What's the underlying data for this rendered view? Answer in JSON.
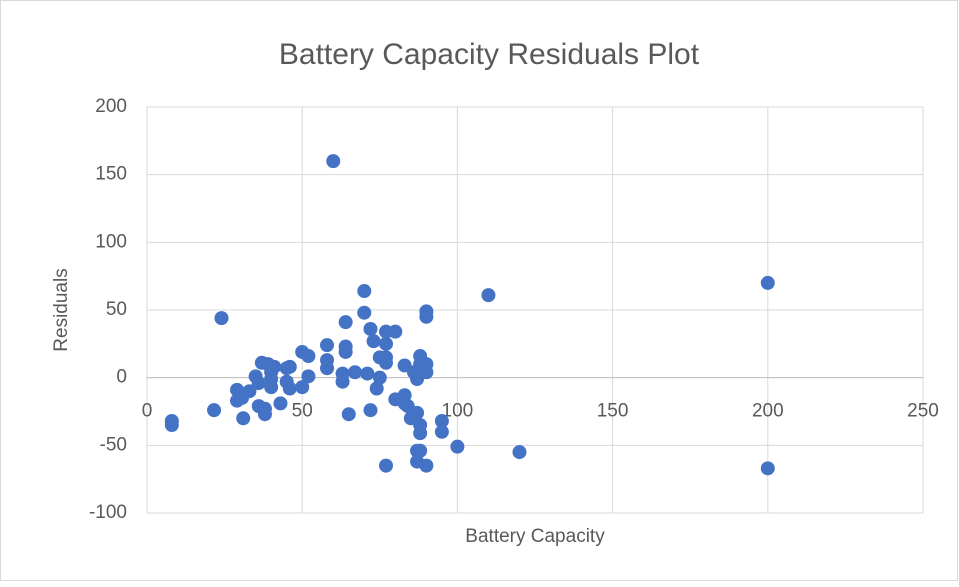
{
  "chart_data": {
    "type": "scatter",
    "title": "Battery Capacity Residuals Plot",
    "x_label": "Battery Capacity",
    "y_label": "Residuals",
    "color": "#4472c4",
    "grid": true,
    "xlim": [
      0,
      250
    ],
    "xticks": [
      0,
      50,
      100,
      150,
      200,
      250
    ],
    "ylim": [
      -100,
      200
    ],
    "yticks": [
      -100,
      -50,
      0,
      50,
      100,
      150,
      200
    ],
    "x": [
      8,
      8,
      21.6,
      24,
      29,
      29,
      30.6,
      31,
      33,
      35,
      36,
      36,
      37,
      38,
      38,
      39,
      40,
      40,
      40,
      41,
      43,
      45,
      45,
      46,
      46,
      50,
      50,
      52,
      52,
      58,
      58,
      58,
      60,
      64,
      64,
      64,
      63,
      63,
      65,
      67,
      70,
      70,
      71,
      72,
      72,
      73,
      74,
      75,
      75,
      77,
      77,
      77,
      77,
      77,
      80,
      80,
      83,
      83,
      83,
      84,
      85,
      86,
      87,
      87,
      87,
      87,
      88,
      88,
      88,
      88,
      88,
      89,
      90,
      90,
      90,
      90,
      90,
      95,
      95,
      100,
      110,
      120,
      200,
      200
    ],
    "values": [
      -35,
      -32,
      -24,
      44,
      -9,
      -17,
      -15,
      -30,
      -10,
      1,
      -4,
      -21,
      11,
      -23,
      -27,
      10,
      4,
      -7,
      -1,
      8,
      -19,
      -3,
      7,
      -8,
      8,
      19,
      -7,
      16,
      1,
      13,
      24,
      7,
      160,
      23,
      41,
      19,
      -3,
      3,
      -27,
      4,
      64,
      48,
      3,
      -24,
      36,
      27,
      -8,
      0,
      15,
      34,
      25,
      15,
      11,
      -65,
      34,
      -16,
      -13,
      -19,
      9,
      -21,
      -30,
      4,
      -26,
      -54,
      -62,
      -1,
      10,
      16,
      -35,
      -41,
      -54,
      7,
      49,
      45,
      10,
      4,
      -65,
      -32,
      -40,
      -51,
      61,
      -55,
      70,
      -67
    ]
  }
}
